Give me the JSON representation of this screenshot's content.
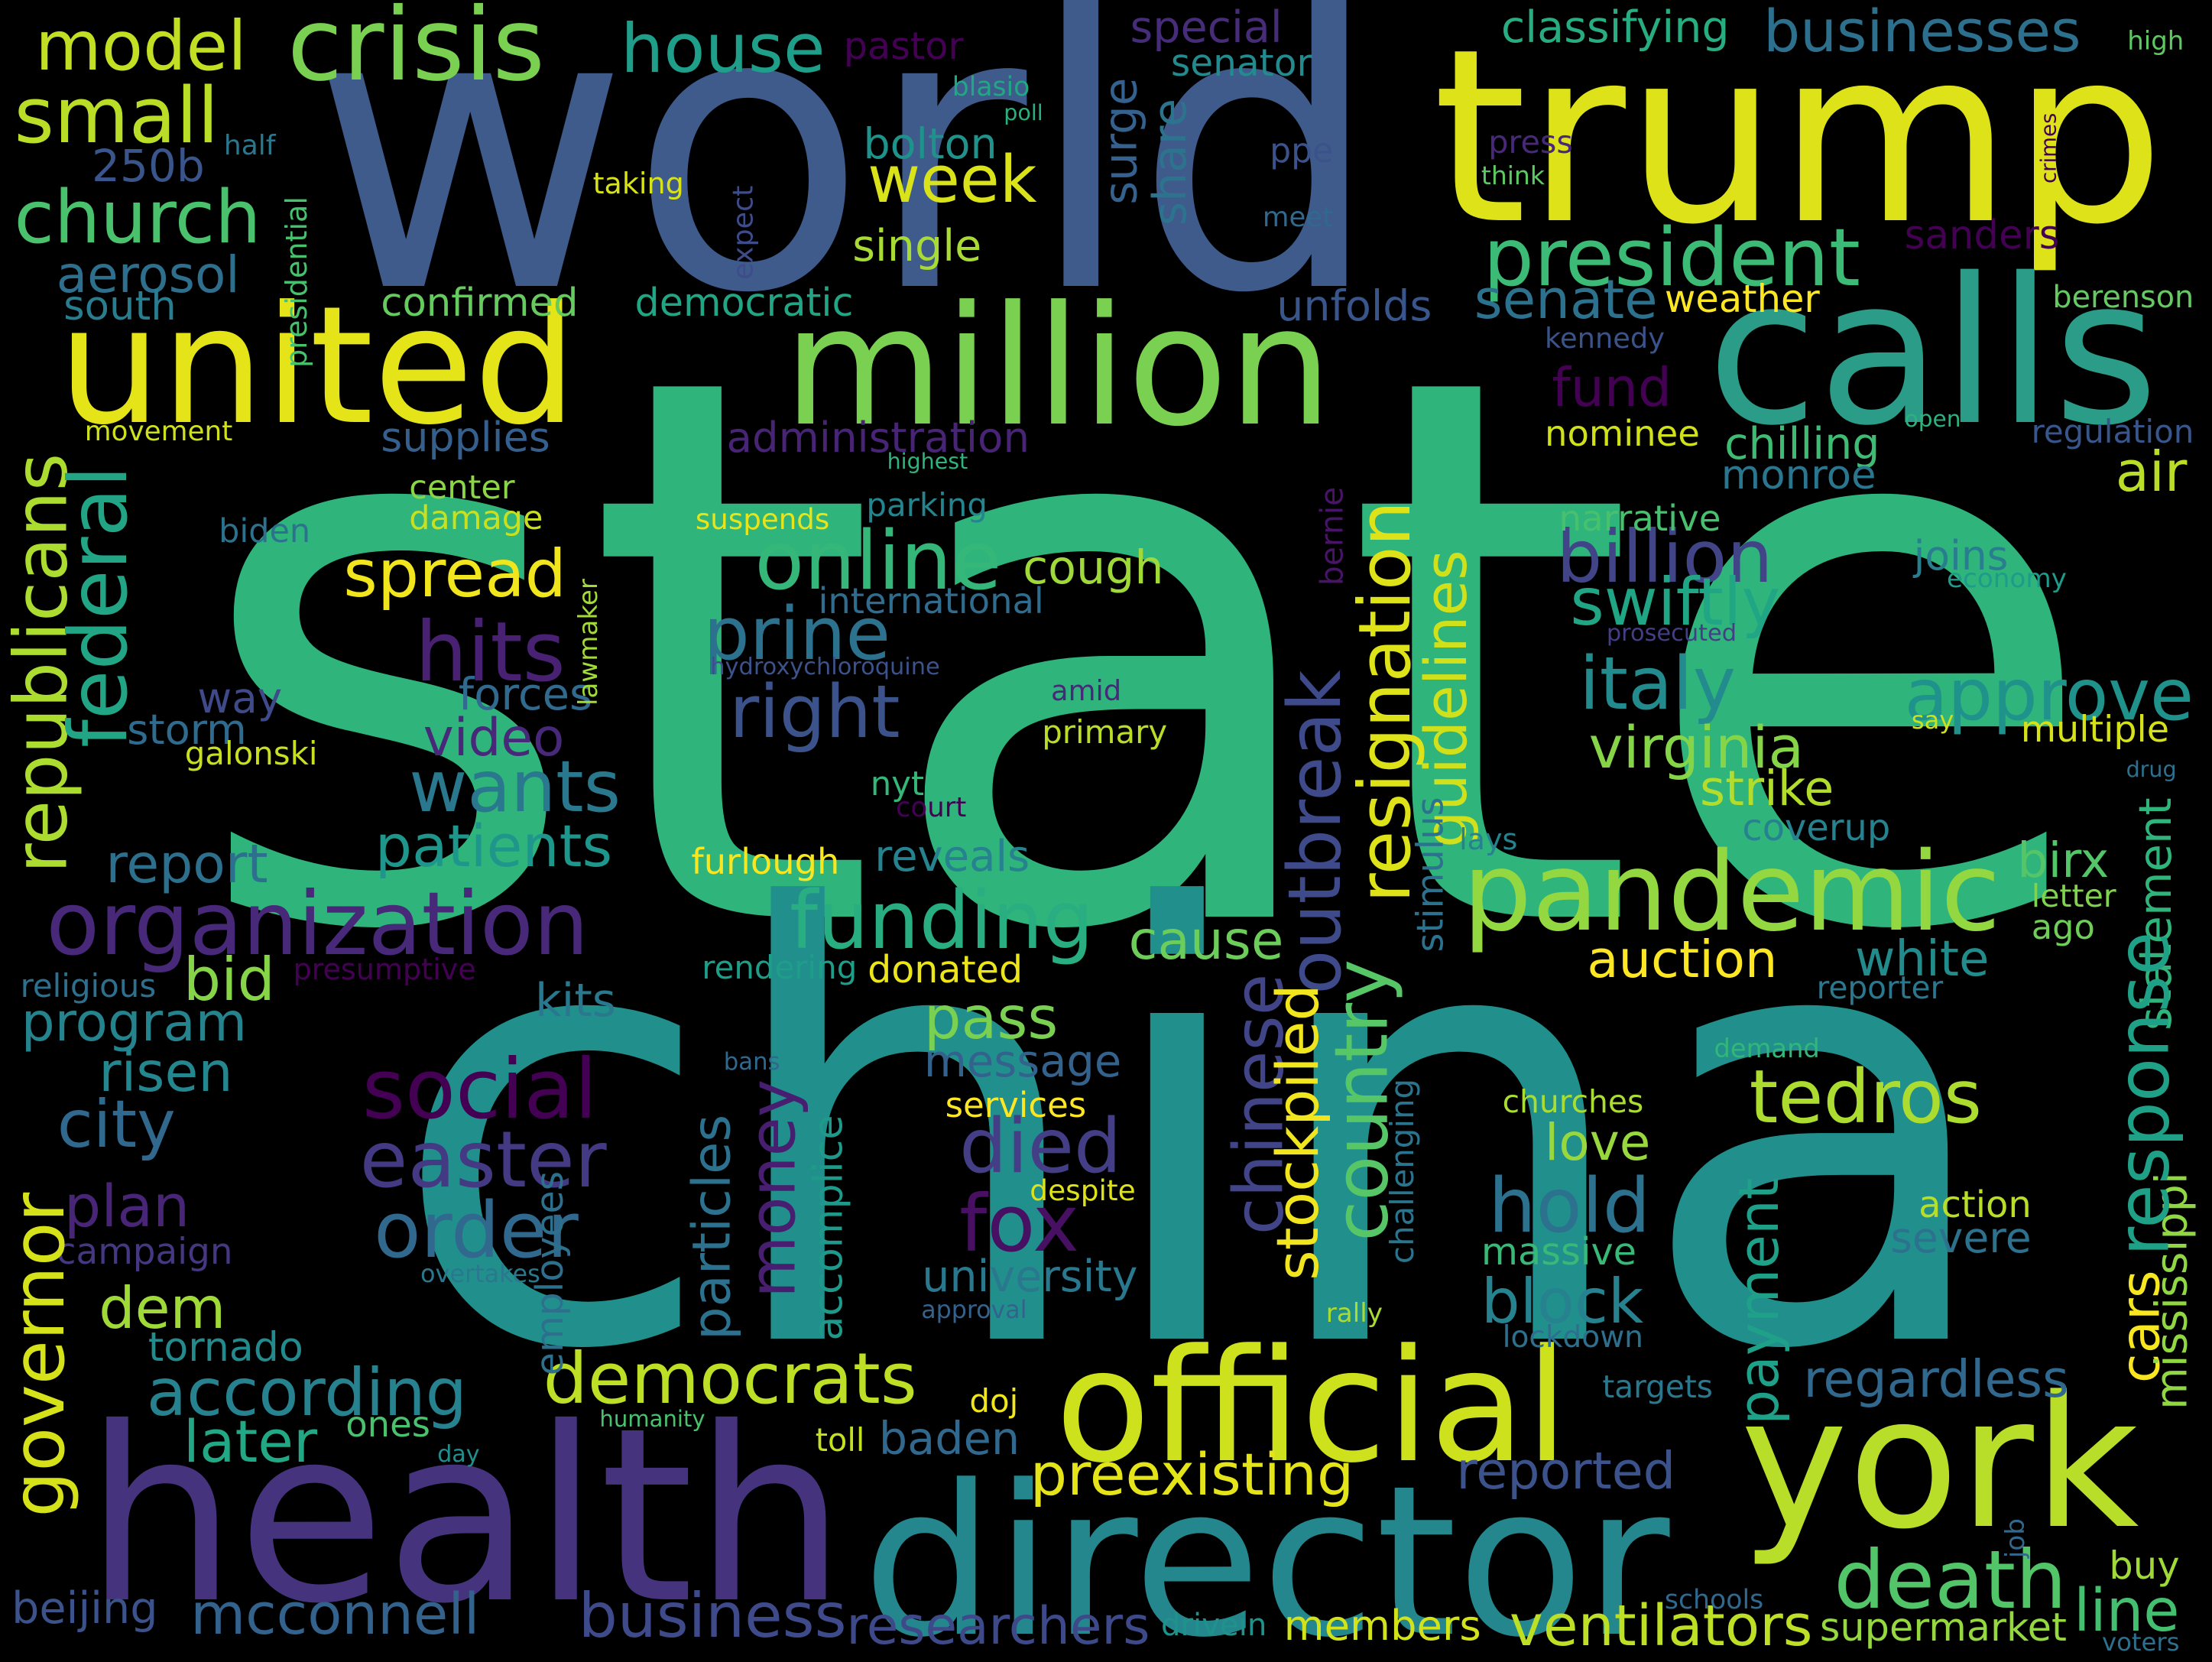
{
  "words": [
    {
      "text": "state",
      "color": "#2fb47c"
    },
    {
      "text": "china",
      "color": "#21908d"
    },
    {
      "text": "world",
      "color": "#3e5b8c"
    },
    {
      "text": "trump",
      "color": "#dde318"
    },
    {
      "text": "health",
      "color": "#46337e"
    },
    {
      "text": "director",
      "color": "#24878e"
    },
    {
      "text": "york",
      "color": "#b8de29"
    },
    {
      "text": "united",
      "color": "#e5e419"
    },
    {
      "text": "million",
      "color": "#7ad151"
    },
    {
      "text": "calls",
      "color": "#2a9c87"
    },
    {
      "text": "official",
      "color": "#cde11d"
    },
    {
      "text": "pandemic",
      "color": "#93d741"
    },
    {
      "text": "president",
      "color": "#3bbb75"
    },
    {
      "text": "organization",
      "color": "#482878"
    },
    {
      "text": "crisis",
      "color": "#7ad151"
    },
    {
      "text": "church",
      "color": "#4ac16d"
    },
    {
      "text": "model",
      "color": "#c2df23"
    },
    {
      "text": "small",
      "color": "#bade28"
    },
    {
      "text": "house",
      "color": "#1f9e89"
    },
    {
      "text": "funding",
      "color": "#28ae80"
    },
    {
      "text": "spread",
      "color": "#f1e51d"
    },
    {
      "text": "online",
      "color": "#35b779"
    },
    {
      "text": "prine",
      "color": "#2c728e"
    },
    {
      "text": "right",
      "color": "#3b528b"
    },
    {
      "text": "hits",
      "color": "#482173"
    },
    {
      "text": "wants",
      "color": "#2a788e"
    },
    {
      "text": "italy",
      "color": "#238a8d"
    },
    {
      "text": "approve",
      "color": "#20928c"
    },
    {
      "text": "week",
      "color": "#dae319"
    },
    {
      "text": "social",
      "color": "#440154"
    },
    {
      "text": "easter",
      "color": "#443983"
    },
    {
      "text": "order",
      "color": "#31688e"
    },
    {
      "text": "died",
      "color": "#433e85"
    },
    {
      "text": "fox",
      "color": "#471063"
    },
    {
      "text": "tedros",
      "color": "#addc30"
    },
    {
      "text": "death",
      "color": "#52c569"
    },
    {
      "text": "democrats",
      "color": "#bddf26"
    },
    {
      "text": "according",
      "color": "#26828e"
    },
    {
      "text": "dem",
      "color": "#a0da39"
    },
    {
      "text": "city",
      "color": "#31688e"
    },
    {
      "text": "hold",
      "color": "#2c728e"
    },
    {
      "text": "block",
      "color": "#26828e"
    },
    {
      "text": "preexisting",
      "color": "#e5e419"
    },
    {
      "text": "mcconnell",
      "color": "#33638d"
    },
    {
      "text": "business",
      "color": "#3e4a89"
    },
    {
      "text": "researchers",
      "color": "#3e4989"
    },
    {
      "text": "members",
      "color": "#d2e21b"
    },
    {
      "text": "ventilators",
      "color": "#bddf26"
    },
    {
      "text": "senate",
      "color": "#2c728e"
    },
    {
      "text": "fund",
      "color": "#440154"
    },
    {
      "text": "billion",
      "color": "#414487"
    },
    {
      "text": "swiftly",
      "color": "#21a685"
    },
    {
      "text": "virginia",
      "color": "#86d549"
    },
    {
      "text": "cough",
      "color": "#9fda3a"
    },
    {
      "text": "patients",
      "color": "#1f968b"
    },
    {
      "text": "report",
      "color": "#2d708e"
    },
    {
      "text": "program",
      "color": "#25838e"
    },
    {
      "text": "bid",
      "color": "#86d549"
    },
    {
      "text": "plan",
      "color": "#482576"
    },
    {
      "text": "later",
      "color": "#22a884"
    },
    {
      "text": "tornado",
      "color": "#238a8d"
    },
    {
      "text": "beijing",
      "color": "#3b528b"
    },
    {
      "text": "campaign",
      "color": "#453781"
    },
    {
      "text": "risen",
      "color": "#24868e"
    },
    {
      "text": "video",
      "color": "#482878"
    },
    {
      "text": "way",
      "color": "#3e4a89"
    },
    {
      "text": "storm",
      "color": "#2f6b8e"
    },
    {
      "text": "forces",
      "color": "#306a8e"
    },
    {
      "text": "damage",
      "color": "#c8e020"
    },
    {
      "text": "center",
      "color": "#8bd646"
    },
    {
      "text": "supplies",
      "color": "#35608d"
    },
    {
      "text": "administration",
      "color": "#482475"
    },
    {
      "text": "confirmed",
      "color": "#65cb5e"
    },
    {
      "text": "democratic",
      "color": "#21a585"
    },
    {
      "text": "aerosol",
      "color": "#2e6f8e"
    },
    {
      "text": "south",
      "color": "#287d8e"
    },
    {
      "text": "movement",
      "color": "#cde11d"
    },
    {
      "text": "250b",
      "color": "#39558c"
    },
    {
      "text": "taking",
      "color": "#d8e219"
    },
    {
      "text": "classifying",
      "color": "#27ad81"
    },
    {
      "text": "businesses",
      "color": "#2d708e"
    },
    {
      "text": "special",
      "color": "#472c7a"
    },
    {
      "text": "senator",
      "color": "#238a8d"
    },
    {
      "text": "pastor",
      "color": "#440154"
    },
    {
      "text": "blasio",
      "color": "#22a785"
    },
    {
      "text": "poll",
      "color": "#2ab07f"
    },
    {
      "text": "bolton",
      "color": "#20928c"
    },
    {
      "text": "single",
      "color": "#a8db34"
    },
    {
      "text": "surge",
      "color": "#34618d"
    },
    {
      "text": "share",
      "color": "#2c738e"
    },
    {
      "text": "ppe",
      "color": "#3b528b"
    },
    {
      "text": "meet",
      "color": "#31688e"
    },
    {
      "text": "unfolds",
      "color": "#39568c"
    },
    {
      "text": "weather",
      "color": "#fde725"
    },
    {
      "text": "berenson",
      "color": "#63cb5f"
    },
    {
      "text": "kennedy",
      "color": "#3a538b"
    },
    {
      "text": "press",
      "color": "#482878"
    },
    {
      "text": "think",
      "color": "#5ec962"
    },
    {
      "text": "high",
      "color": "#5ec962"
    },
    {
      "text": "crimes",
      "color": "#440154"
    },
    {
      "text": "sanders",
      "color": "#440154"
    },
    {
      "text": "open",
      "color": "#2db27d"
    },
    {
      "text": "regulation",
      "color": "#39568c"
    },
    {
      "text": "nominee",
      "color": "#d0e11c"
    },
    {
      "text": "chilling",
      "color": "#3fbc73"
    },
    {
      "text": "monroe",
      "color": "#2a768e"
    },
    {
      "text": "air",
      "color": "#bade28"
    },
    {
      "text": "narrative",
      "color": "#48c16e"
    },
    {
      "text": "joins",
      "color": "#287d8e"
    },
    {
      "text": "economy",
      "color": "#1e9b8a"
    },
    {
      "text": "prosecuted",
      "color": "#433e85"
    },
    {
      "text": "say",
      "color": "#cde11d"
    },
    {
      "text": "multiple",
      "color": "#d5e21a"
    },
    {
      "text": "drug",
      "color": "#2d708e"
    },
    {
      "text": "strike",
      "color": "#b2dd2d"
    },
    {
      "text": "coverup",
      "color": "#26828e"
    },
    {
      "text": "birx",
      "color": "#54c568"
    },
    {
      "text": "ago",
      "color": "#6ece58"
    },
    {
      "text": "letter",
      "color": "#7fd34e"
    },
    {
      "text": "statement",
      "color": "#2fb47c"
    },
    {
      "text": "white",
      "color": "#228c8d"
    },
    {
      "text": "auction",
      "color": "#fde725"
    },
    {
      "text": "reporter",
      "color": "#2a788e"
    },
    {
      "text": "demand",
      "color": "#32b67a"
    },
    {
      "text": "churches",
      "color": "#aadc32"
    },
    {
      "text": "love",
      "color": "#98d83e"
    },
    {
      "text": "action",
      "color": "#b8de29"
    },
    {
      "text": "severe",
      "color": "#2c728e"
    },
    {
      "text": "massive",
      "color": "#38b977"
    },
    {
      "text": "lockdown",
      "color": "#2d708e"
    },
    {
      "text": "targets",
      "color": "#2a788e"
    },
    {
      "text": "regardless",
      "color": "#31688e"
    },
    {
      "text": "cars",
      "color": "#f8e621"
    },
    {
      "text": "mississippi",
      "color": "#90d743"
    },
    {
      "text": "response",
      "color": "#1fa187"
    },
    {
      "text": "reported",
      "color": "#3b528b"
    },
    {
      "text": "buy",
      "color": "#a0da39"
    },
    {
      "text": "line",
      "color": "#44bf70"
    },
    {
      "text": "supermarket",
      "color": "#95d840"
    },
    {
      "text": "schools",
      "color": "#31688e"
    },
    {
      "text": "voters",
      "color": "#2d708e"
    },
    {
      "text": "job",
      "color": "#31688e"
    },
    {
      "text": "payment",
      "color": "#1fa088"
    },
    {
      "text": "chinese",
      "color": "#414487"
    },
    {
      "text": "outbreak",
      "color": "#3e4a89"
    },
    {
      "text": "resignation",
      "color": "#dde318"
    },
    {
      "text": "guidelines",
      "color": "#d0e11c"
    },
    {
      "text": "country",
      "color": "#56c667"
    },
    {
      "text": "stockpiled",
      "color": "#f1e51d"
    },
    {
      "text": "reveals",
      "color": "#26828e"
    },
    {
      "text": "cause",
      "color": "#6ccd5a"
    },
    {
      "text": "donated",
      "color": "#ece51b"
    },
    {
      "text": "pass",
      "color": "#7ad151"
    },
    {
      "text": "message",
      "color": "#33628d"
    },
    {
      "text": "university",
      "color": "#2a788e"
    },
    {
      "text": "money",
      "color": "#481f70"
    },
    {
      "text": "particles",
      "color": "#2c728e"
    },
    {
      "text": "accomplice",
      "color": "#1f9a8a"
    },
    {
      "text": "despite",
      "color": "#dde318"
    },
    {
      "text": "services",
      "color": "#fde725"
    },
    {
      "text": "bans",
      "color": "#31688e"
    },
    {
      "text": "approval",
      "color": "#33638d"
    },
    {
      "text": "rally",
      "color": "#a8db34"
    },
    {
      "text": "doj",
      "color": "#f1e51d"
    },
    {
      "text": "toll",
      "color": "#c5e021"
    },
    {
      "text": "baden",
      "color": "#31688e"
    },
    {
      "text": "humanity",
      "color": "#4ac16d"
    },
    {
      "text": "day",
      "color": "#218f8d"
    },
    {
      "text": "drivein",
      "color": "#20928c"
    },
    {
      "text": "rendering",
      "color": "#1e9d89"
    },
    {
      "text": "furlough",
      "color": "#f8e621"
    },
    {
      "text": "kits",
      "color": "#2a788e"
    },
    {
      "text": "presumptive",
      "color": "#440154"
    },
    {
      "text": "religious",
      "color": "#2d708e"
    },
    {
      "text": "republicans",
      "color": "#addc30"
    },
    {
      "text": "federal",
      "color": "#21a585"
    },
    {
      "text": "governor",
      "color": "#d5e21a"
    },
    {
      "text": "employees",
      "color": "#2d708e"
    },
    {
      "text": "overtakes",
      "color": "#2a788e"
    },
    {
      "text": "ones",
      "color": "#4ac16d"
    },
    {
      "text": "galonski",
      "color": "#c8e020"
    },
    {
      "text": "biden",
      "color": "#2c728e"
    },
    {
      "text": "lawmaker",
      "color": "#a2da37"
    },
    {
      "text": "highest",
      "color": "#2fb47c"
    },
    {
      "text": "international",
      "color": "#2f6c8e"
    },
    {
      "text": "hydroxychloroquine",
      "color": "#3b528b"
    },
    {
      "text": "suspends",
      "color": "#e7e419"
    },
    {
      "text": "parking",
      "color": "#25858e"
    },
    {
      "text": "amid",
      "color": "#482878"
    },
    {
      "text": "primary",
      "color": "#bade28"
    },
    {
      "text": "nyt",
      "color": "#35b779"
    },
    {
      "text": "court",
      "color": "#440154"
    },
    {
      "text": "bernie",
      "color": "#481467"
    },
    {
      "text": "lays",
      "color": "#26828e"
    },
    {
      "text": "stimulus",
      "color": "#2c728e"
    },
    {
      "text": "challenging",
      "color": "#2b748e"
    },
    {
      "text": "presidential",
      "color": "#48c16e"
    },
    {
      "text": "expect",
      "color": "#3e4c8a"
    },
    {
      "text": "half",
      "color": "#2a788e"
    }
  ]
}
